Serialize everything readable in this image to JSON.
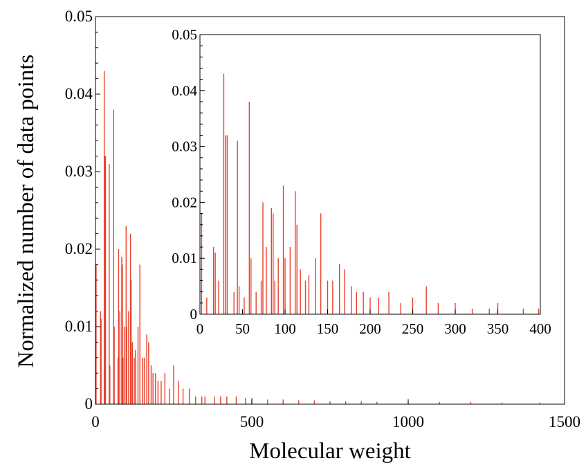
{
  "colors": {
    "series": "#e8412c",
    "axis": "#000000",
    "background": "#ffffff"
  },
  "chart_data": [
    {
      "type": "bar",
      "role": "main",
      "title": "",
      "xlabel": "Molecular weight",
      "ylabel": "Normalized number of data points",
      "xlim": [
        0,
        1500
      ],
      "ylim": [
        0,
        0.05
      ],
      "x_ticks": [
        "0",
        "500",
        "1000",
        "1500"
      ],
      "y_ticks": [
        "0",
        "0.01",
        "0.02",
        "0.03",
        "0.04",
        "0.05"
      ],
      "grid": false,
      "legend": "none",
      "series": [
        {
          "x": [
            2,
            16,
            18,
            28,
            30,
            32,
            44,
            46,
            58,
            60,
            72,
            74,
            78,
            84,
            86,
            88,
            92,
            98,
            100,
            106,
            112,
            114,
            118,
            124,
            128,
            136,
            142,
            150,
            156,
            164,
            170,
            178,
            184,
            192,
            200,
            210,
            222,
            236,
            250,
            266,
            280,
            300,
            320,
            340,
            350,
            380,
            400,
            420,
            450,
            480,
            500,
            550,
            600,
            650,
            700,
            750,
            800,
            850,
            900,
            1000,
            1100,
            1200,
            1300,
            1420
          ],
          "values": [
            0.018,
            0.012,
            0.011,
            0.043,
            0.032,
            0.032,
            0.031,
            0.005,
            0.038,
            0.01,
            0.006,
            0.02,
            0.012,
            0.019,
            0.018,
            0.006,
            0.01,
            0.023,
            0.01,
            0.012,
            0.022,
            0.016,
            0.008,
            0.006,
            0.007,
            0.01,
            0.018,
            0.006,
            0.006,
            0.009,
            0.008,
            0.005,
            0.004,
            0.004,
            0.003,
            0.003,
            0.004,
            0.002,
            0.005,
            0.003,
            0.002,
            0.002,
            0.001,
            0.001,
            0.001,
            0.001,
            0.001,
            0.001,
            0.001,
            0.0008,
            0.0008,
            0.0006,
            0.0006,
            0.0005,
            0.0005,
            0.0004,
            0.0004,
            0.0004,
            0.0003,
            0.0003,
            0.0003,
            0.0003,
            0.0002,
            0.0002
          ]
        }
      ]
    },
    {
      "type": "bar",
      "role": "inset",
      "title": "",
      "xlabel": "",
      "ylabel": "",
      "xlim": [
        0,
        400
      ],
      "ylim": [
        0,
        0.05
      ],
      "x_ticks": [
        "0",
        "50",
        "100",
        "150",
        "200",
        "250",
        "300",
        "350",
        "400"
      ],
      "y_ticks": [
        "0",
        "0.01",
        "0.02",
        "0.03",
        "0.04",
        "0.05"
      ],
      "grid": false,
      "legend": "none",
      "series": [
        {
          "x": [
            2,
            8,
            16,
            18,
            22,
            28,
            30,
            32,
            40,
            44,
            46,
            52,
            58,
            60,
            66,
            72,
            74,
            78,
            84,
            86,
            88,
            92,
            98,
            100,
            106,
            112,
            114,
            118,
            124,
            128,
            136,
            142,
            150,
            156,
            164,
            170,
            178,
            184,
            192,
            200,
            210,
            222,
            236,
            250,
            266,
            280,
            300,
            320,
            340,
            350,
            380,
            398
          ],
          "values": [
            0.018,
            0.003,
            0.012,
            0.011,
            0.006,
            0.043,
            0.032,
            0.032,
            0.004,
            0.031,
            0.005,
            0.003,
            0.038,
            0.01,
            0.004,
            0.006,
            0.02,
            0.012,
            0.019,
            0.018,
            0.006,
            0.01,
            0.023,
            0.01,
            0.012,
            0.022,
            0.016,
            0.008,
            0.006,
            0.007,
            0.01,
            0.018,
            0.006,
            0.006,
            0.009,
            0.008,
            0.005,
            0.004,
            0.004,
            0.003,
            0.003,
            0.004,
            0.002,
            0.003,
            0.005,
            0.002,
            0.002,
            0.001,
            0.001,
            0.002,
            0.001,
            0.001
          ]
        }
      ]
    }
  ]
}
